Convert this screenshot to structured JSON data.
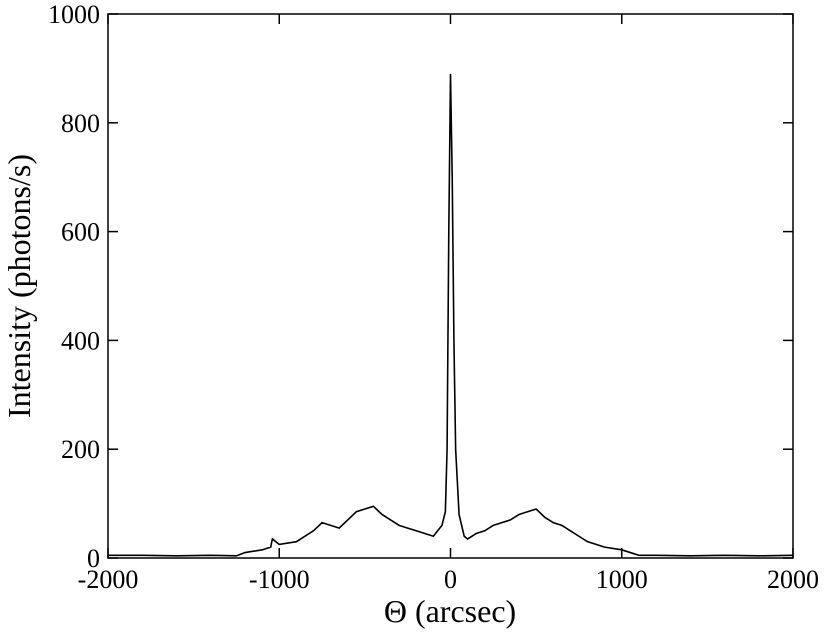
{
  "chart_data": {
    "type": "line",
    "xlabel": "Θ (arcsec)",
    "ylabel": "Intensity (photons/s)",
    "xlim": [
      -2000,
      2000
    ],
    "xticks": [
      -2000,
      -1000,
      0,
      1000,
      2000
    ],
    "ylim": [
      0,
      1000
    ],
    "yticks": [
      0,
      200,
      400,
      600,
      800,
      1000
    ],
    "series": [
      {
        "color": "#000000",
        "x": [
          -2000,
          -1800,
          -1600,
          -1400,
          -1250,
          -1200,
          -1100,
          -1050,
          -1040,
          -1000,
          -900,
          -800,
          -750,
          -700,
          -650,
          -600,
          -550,
          -500,
          -450,
          -400,
          -350,
          -300,
          -250,
          -200,
          -150,
          -100,
          -50,
          -30,
          -20,
          -10,
          0,
          10,
          20,
          30,
          50,
          80,
          100,
          150,
          200,
          250,
          300,
          350,
          400,
          450,
          500,
          550,
          600,
          650,
          700,
          750,
          800,
          900,
          1000,
          1050,
          1100,
          1200,
          1400,
          1600,
          1800,
          2000
        ],
        "values": [
          5,
          5,
          4,
          5,
          4,
          10,
          15,
          20,
          35,
          25,
          30,
          50,
          65,
          60,
          55,
          70,
          85,
          90,
          95,
          80,
          70,
          60,
          55,
          50,
          45,
          40,
          60,
          85,
          200,
          600,
          890,
          700,
          400,
          200,
          80,
          40,
          35,
          45,
          50,
          60,
          65,
          70,
          80,
          85,
          90,
          75,
          65,
          60,
          50,
          40,
          30,
          20,
          15,
          10,
          5,
          5,
          4,
          5,
          4,
          5
        ]
      }
    ]
  }
}
